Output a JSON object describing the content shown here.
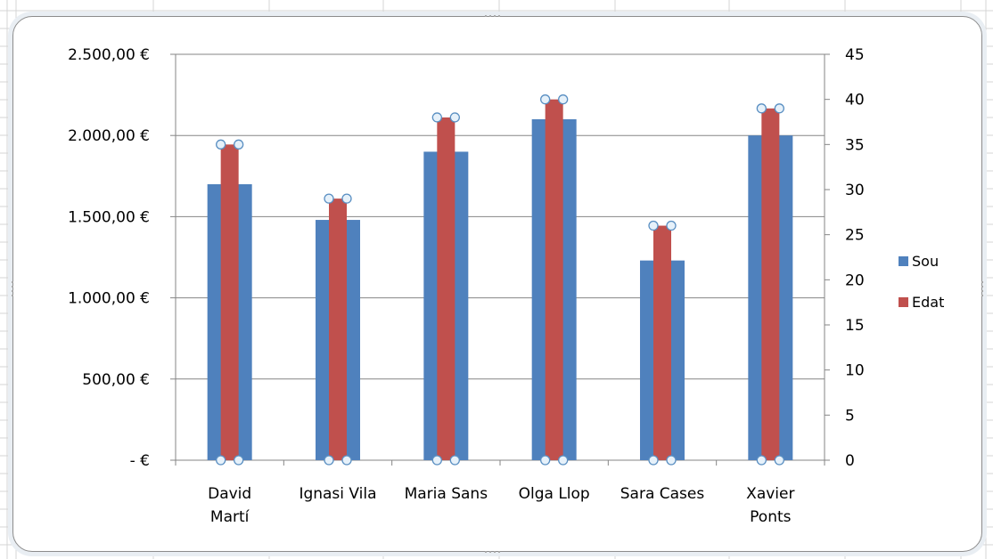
{
  "chart_data": {
    "type": "bar",
    "categories": [
      [
        "David",
        "Martí"
      ],
      [
        "Ignasi Vila"
      ],
      [
        "Maria Sans"
      ],
      [
        "Olga Llop"
      ],
      [
        "Sara Cases"
      ],
      [
        "Xavier",
        "Ponts"
      ]
    ],
    "series": [
      {
        "name": "Sou",
        "axis": "left",
        "color": "#4f81bd",
        "values": [
          1700,
          1480,
          1900,
          2100,
          1230,
          2000
        ]
      },
      {
        "name": "Edat",
        "axis": "right",
        "color": "#c0504d",
        "values": [
          35,
          29,
          38,
          40,
          26,
          39
        ]
      }
    ],
    "left_axis": {
      "ylim": [
        0,
        2500
      ],
      "ticks": [
        0,
        500,
        1000,
        1500,
        2000,
        2500
      ],
      "tick_labels": [
        "-  €",
        "500,00 €",
        "1.000,00 €",
        "1.500,00 €",
        "2.000,00 €",
        "2.500,00 €"
      ]
    },
    "right_axis": {
      "ylim": [
        0,
        45
      ],
      "ticks": [
        0,
        5,
        10,
        15,
        20,
        25,
        30,
        35,
        40,
        45
      ],
      "tick_labels": [
        "0",
        "5",
        "10",
        "15",
        "20",
        "25",
        "30",
        "35",
        "40",
        "45"
      ]
    },
    "grid": true,
    "legend": "right",
    "selected_series": "Edat"
  }
}
